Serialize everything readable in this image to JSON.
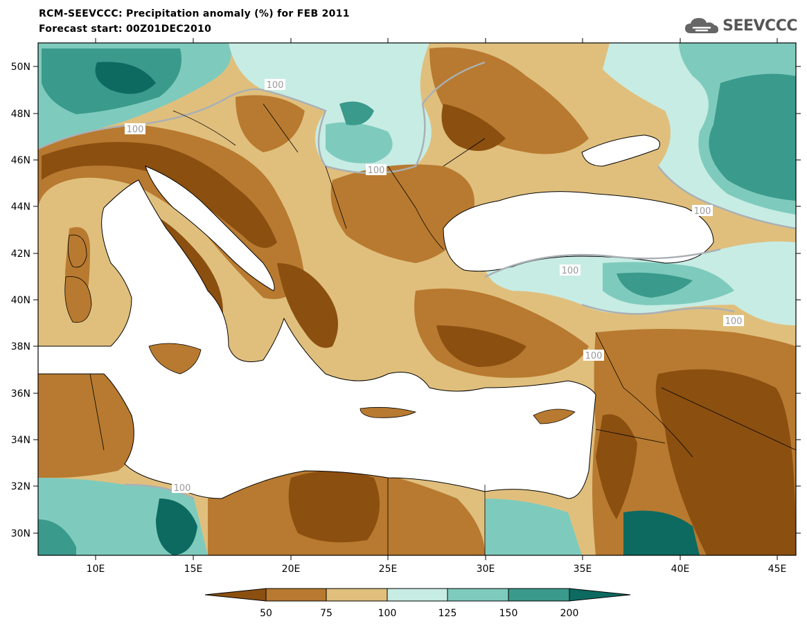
{
  "header": {
    "title": "RCM-SEEVCCC: Precipitation anomaly (%) for FEB 2011",
    "subtitle": "Forecast start: 00Z01DEC2010",
    "logo_text": "SEEVCCC"
  },
  "map": {
    "x_ticks": [
      "10E",
      "15E",
      "20E",
      "25E",
      "30E",
      "35E",
      "40E",
      "45E"
    ],
    "y_ticks": [
      "50N",
      "48N",
      "46N",
      "44N",
      "42N",
      "40N",
      "38N",
      "36N",
      "34N",
      "32N",
      "30N"
    ],
    "contour_label": "100"
  },
  "legend": {
    "levels": [
      "50",
      "75",
      "100",
      "125",
      "150",
      "200"
    ],
    "colors": [
      "#8b4f10",
      "#b87a30",
      "#e0bf7d",
      "#c7ece4",
      "#7ecbbd",
      "#3a9a8c",
      "#0d6a60"
    ]
  },
  "palette": {
    "land_dry_strong": "#8b4f10",
    "land_dry": "#b87a30",
    "land_dry_light": "#e0bf7d",
    "land_wet_light": "#c7ece4",
    "land_wet": "#7ecbbd",
    "land_wet_strong": "#3a9a8c",
    "sea": "#ffffff"
  }
}
